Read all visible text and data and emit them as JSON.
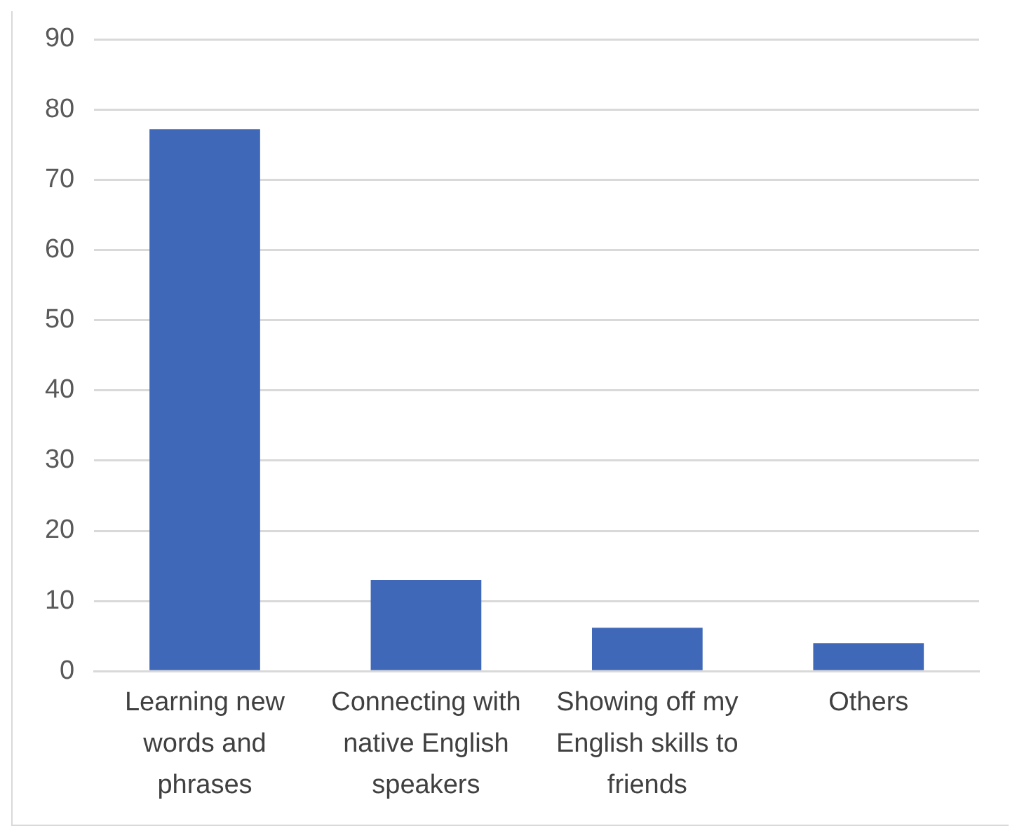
{
  "chart_data": {
    "type": "bar",
    "categories": [
      "Learning new words and phrases",
      "Connecting with native English speakers",
      "Showing off my English skills to friends",
      "Others"
    ],
    "values": [
      77.2,
      13,
      6.2,
      4
    ],
    "color": "#3f69b8",
    "ylim": [
      0,
      90
    ],
    "yticks": [
      0,
      10,
      20,
      30,
      40,
      50,
      60,
      70,
      80,
      90
    ],
    "grid": "y",
    "legend": false
  }
}
